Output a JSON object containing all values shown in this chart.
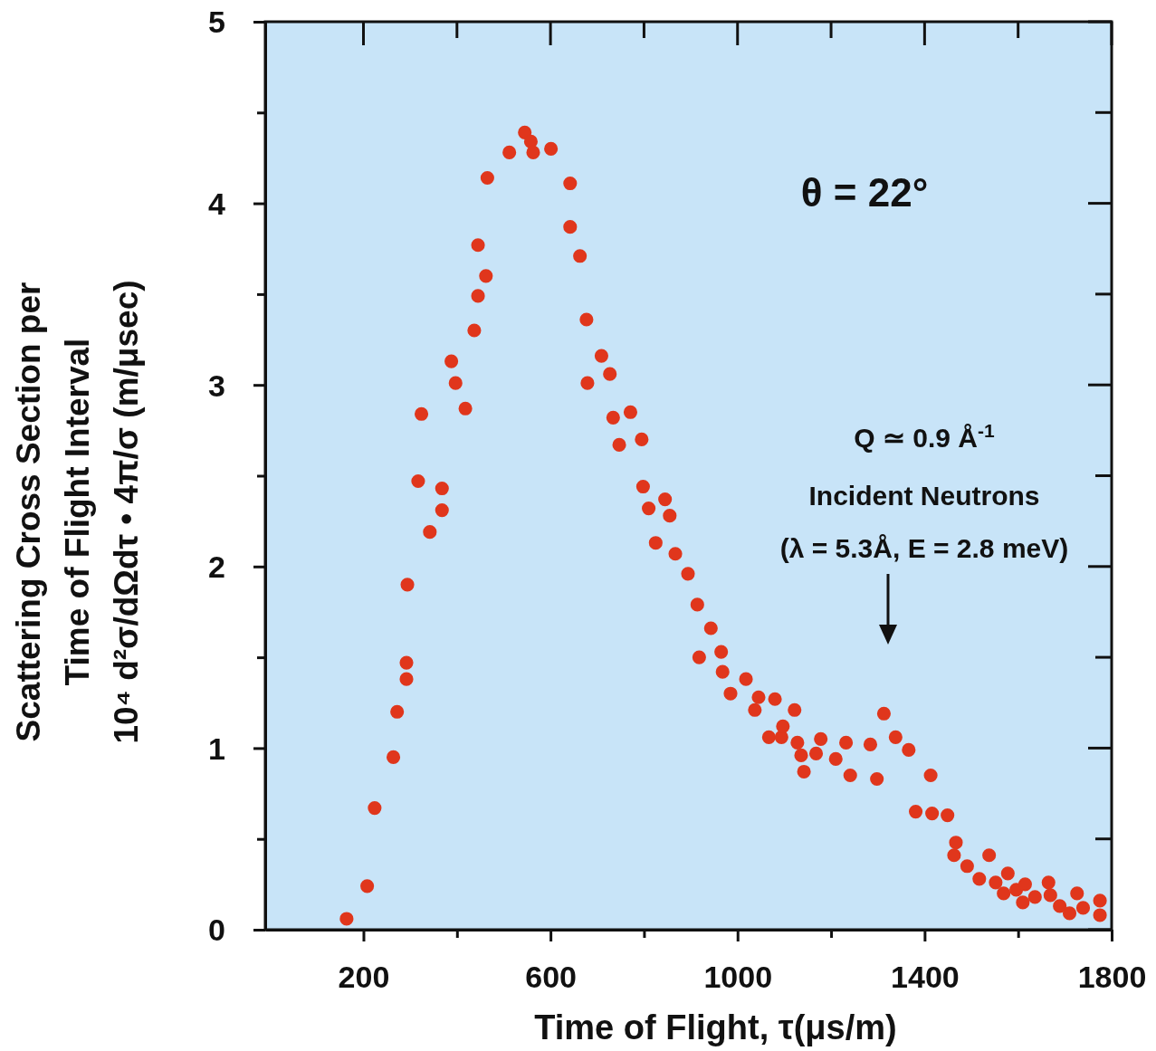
{
  "chart_data": {
    "type": "scatter",
    "xlabel": "Time of Flight, τ(μs/m)",
    "ylabel": "Scattering Cross Section per\nTime of Flight Interval\n10⁴ d²σ/dΩdτ • 4π/σ (m/μsec)",
    "x": [
      164,
      208,
      224,
      264,
      272,
      292,
      292,
      294,
      317,
      324,
      342,
      368,
      368,
      388,
      397,
      418,
      437,
      445,
      445,
      462,
      465,
      512,
      545,
      558,
      563,
      601,
      642,
      642,
      663,
      677,
      679,
      709,
      727,
      734,
      747,
      771,
      795,
      798,
      810,
      825,
      845,
      855,
      867,
      894,
      914,
      918,
      943,
      965,
      968,
      985,
      1018,
      1037,
      1045,
      1067,
      1080,
      1094,
      1097,
      1122,
      1128,
      1136,
      1142,
      1168,
      1178,
      1210,
      1232,
      1241,
      1284,
      1298,
      1313,
      1338,
      1366,
      1381,
      1413,
      1416,
      1449,
      1463,
      1467,
      1491,
      1517,
      1538,
      1552,
      1569,
      1578,
      1596,
      1610,
      1615,
      1636,
      1665,
      1669,
      1689,
      1710,
      1726,
      1739,
      1775,
      1775
    ],
    "series": [
      {
        "color": "#e0361c",
        "values": [
          0.06,
          0.24,
          0.67,
          0.95,
          1.2,
          1.47,
          1.38,
          1.9,
          2.47,
          2.84,
          2.19,
          2.43,
          2.31,
          3.13,
          3.01,
          2.87,
          3.3,
          3.77,
          3.49,
          3.6,
          4.14,
          4.28,
          4.39,
          4.34,
          4.28,
          4.3,
          4.11,
          3.87,
          3.71,
          3.36,
          3.01,
          3.16,
          3.06,
          2.82,
          2.67,
          2.85,
          2.7,
          2.44,
          2.32,
          2.13,
          2.37,
          2.28,
          2.07,
          1.96,
          1.79,
          1.5,
          1.66,
          1.53,
          1.42,
          1.3,
          1.38,
          1.21,
          1.28,
          1.06,
          1.27,
          1.06,
          1.12,
          1.21,
          1.03,
          0.96,
          0.87,
          0.97,
          1.05,
          0.94,
          1.03,
          0.85,
          1.02,
          0.83,
          1.19,
          1.06,
          0.99,
          0.65,
          0.85,
          0.64,
          0.63,
          0.41,
          0.48,
          0.35,
          0.28,
          0.41,
          0.26,
          0.2,
          0.31,
          0.22,
          0.15,
          0.25,
          0.18,
          0.26,
          0.19,
          0.13,
          0.09,
          0.2,
          0.12,
          0.16,
          0.08
        ]
      }
    ],
    "marker": "circle",
    "xlim": [
      -10,
      1800
    ],
    "ylim": [
      0,
      5
    ],
    "xticks": [
      200,
      {
        "value": 400,
        "label": null
      },
      600,
      {
        "value": 800,
        "label": null
      },
      1000,
      {
        "value": 1200,
        "label": null
      },
      1400,
      {
        "value": 1600,
        "label": null
      },
      1800
    ],
    "yticks": [
      0,
      {
        "value": 0.5,
        "label": null
      },
      1,
      {
        "value": 1.5,
        "label": null
      },
      2,
      {
        "value": 2.5,
        "label": null
      },
      3,
      {
        "value": 3.5,
        "label": null
      },
      4,
      {
        "value": 4.5,
        "label": null
      },
      5
    ],
    "grid": false,
    "annotations": [
      "θ = 22°",
      "Q ≃ 0.9 Å$^{-1}$",
      "Incident Neutrons",
      "(λ = 5.3Å, E = 2.8 meV)"
    ]
  }
}
